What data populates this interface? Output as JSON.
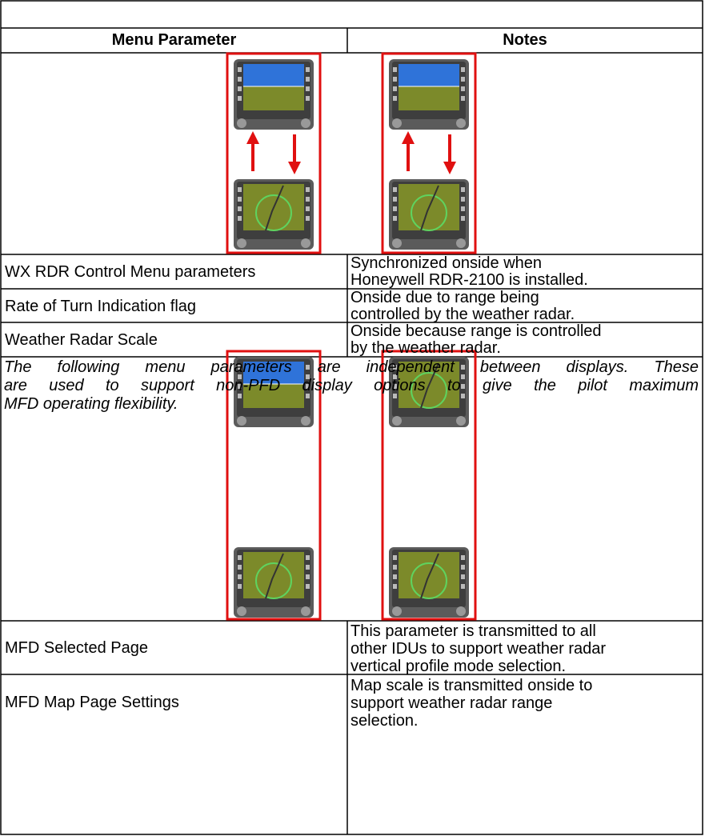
{
  "table": {
    "header": [
      "Menu Parameter",
      "Notes"
    ],
    "rows": [
      {
        "parameter": "WX RDR Control Menu parameters",
        "notes": [
          "Synchronized onside when",
          "Honeywell RDR-2100 is installed."
        ]
      },
      {
        "parameter": "Rate of Turn Indication flag",
        "notes": [
          "Onside due to range being",
          "controlled by the weather radar."
        ]
      },
      {
        "parameter": "Weather Radar Scale",
        "notes": [
          "Onside because range is controlled",
          "by the weather radar."
        ]
      }
    ],
    "independent_note": [
      "The following menu parameters are independent between displays. These",
      "are used to support non-PFD display options to give the pilot maximum",
      "MFD operating flexibility."
    ],
    "independent_rows": [
      {
        "parameter": "MFD Selected Page",
        "notes": [
          "This parameter is transmitted to all",
          "other IDUs to support weather radar",
          "vertical profile mode selection."
        ]
      },
      {
        "parameter": "MFD Map Page Settings",
        "notes": [
          "Map scale is transmitted onside to",
          "support weather radar range",
          "selection."
        ]
      }
    ]
  }
}
